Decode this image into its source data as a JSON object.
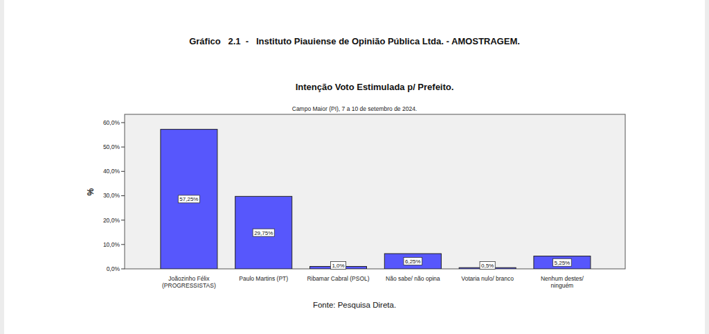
{
  "chart_data": {
    "type": "bar",
    "title": "Gráfico   2.1  -   Instituto Piauiense de Opinião Pública Ltda. - AMOSTRAGEM.",
    "subtitle": "Intenção Voto Estimulada p/ Prefeito.",
    "annotation": "Campo Maior (PI), 7 a 10 de setembro de 2024.",
    "source": "Fonte: Pesquisa Direta.",
    "y_label": "%",
    "categories": [
      "Joãozinho Félix\n(PROGRESSISTAS)",
      "Paulo Martins (PT)",
      "Ribamar Cabral (PSOL)",
      "Não sabe/ não opina",
      "Votaria nulo/ branco",
      "Nenhum destes/\nninguém"
    ],
    "values": [
      57.25,
      29.75,
      1.0,
      6.25,
      0.5,
      5.25
    ],
    "value_labels": [
      "57,25%",
      "29,75%",
      "1,0%",
      "6,25%",
      "0,5%",
      "5,25%"
    ],
    "color": "#5757fc",
    "ylim": [
      0,
      63.4
    ],
    "yticks": [
      {
        "value": 0,
        "label": "0,0%"
      },
      {
        "value": 10,
        "label": "10,0%"
      },
      {
        "value": 20,
        "label": "20,0%"
      },
      {
        "value": 30,
        "label": "30,0%"
      },
      {
        "value": 40,
        "label": "40,0%"
      },
      {
        "value": 50,
        "label": "50,0%"
      },
      {
        "value": 60,
        "label": "60,0%"
      }
    ],
    "grid": false,
    "data_labels": true
  }
}
